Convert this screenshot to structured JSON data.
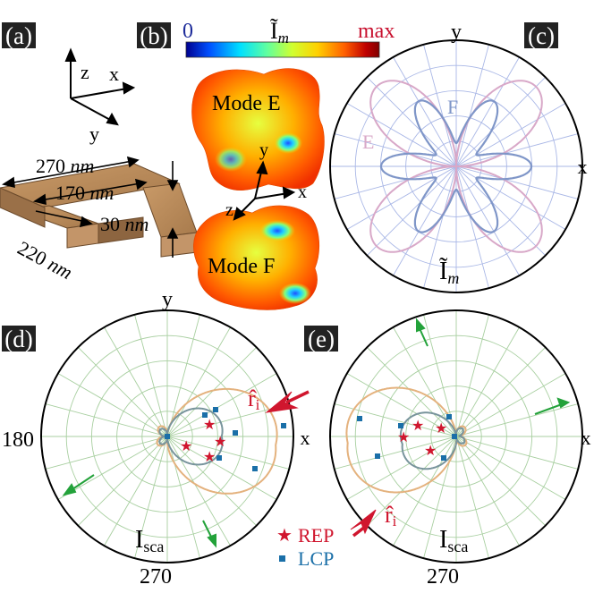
{
  "panels": {
    "a": {
      "label": "(a)",
      "axes": {
        "z": "z",
        "x": "x",
        "y": "y"
      },
      "dims": {
        "outer": "270",
        "inner": "170",
        "thick": "30",
        "depth": "220",
        "unit": "nm"
      }
    },
    "b": {
      "label": "(b)",
      "colorbar": {
        "min": "0",
        "max": "max",
        "quantity": "Ĩ",
        "sub": "m",
        "colors": [
          "#00008f",
          "#0050ff",
          "#00e0ff",
          "#60ff9f",
          "#d0ff30",
          "#ffd000",
          "#ff6000",
          "#c00000",
          "#800000"
        ]
      },
      "mode_e": "Mode E",
      "mode_f": "Mode F",
      "axes": {
        "z": "z",
        "x": "x",
        "y": "y"
      }
    },
    "c": {
      "label": "(c)",
      "axis_y": "y",
      "axis_x": "x",
      "curve_e": "E",
      "curve_f": "F",
      "quantity": "Ĩ",
      "sub": "m",
      "color_e": "#d8a8c8",
      "color_f": "#7f96c8"
    },
    "d": {
      "label": "(d)",
      "axis_y": "y",
      "axis_x": "x",
      "tick_180": "180",
      "tick_270": "270",
      "incident": "r̂",
      "incident_sub": "i",
      "quantity": "I",
      "sub": "sca"
    },
    "e": {
      "label": "(e)",
      "axis_x": "x",
      "tick_270": "270",
      "incident": "r̂",
      "incident_sub": "i",
      "quantity": "I",
      "sub": "sca"
    }
  },
  "legend": {
    "rep": "REP",
    "lcp": "LCP",
    "rep_color": "#d0162e",
    "lcp_color": "#1a6fa8"
  },
  "colors": {
    "polar_grid_c": "#a9b7e6",
    "polar_grid_de": "#a8cfa0",
    "orange_curve": "#e4b27e",
    "gray_curve": "#78949c",
    "green_arrow": "#23a23a",
    "red_arrow": "#d0162e",
    "wood": "#b8885a"
  }
}
